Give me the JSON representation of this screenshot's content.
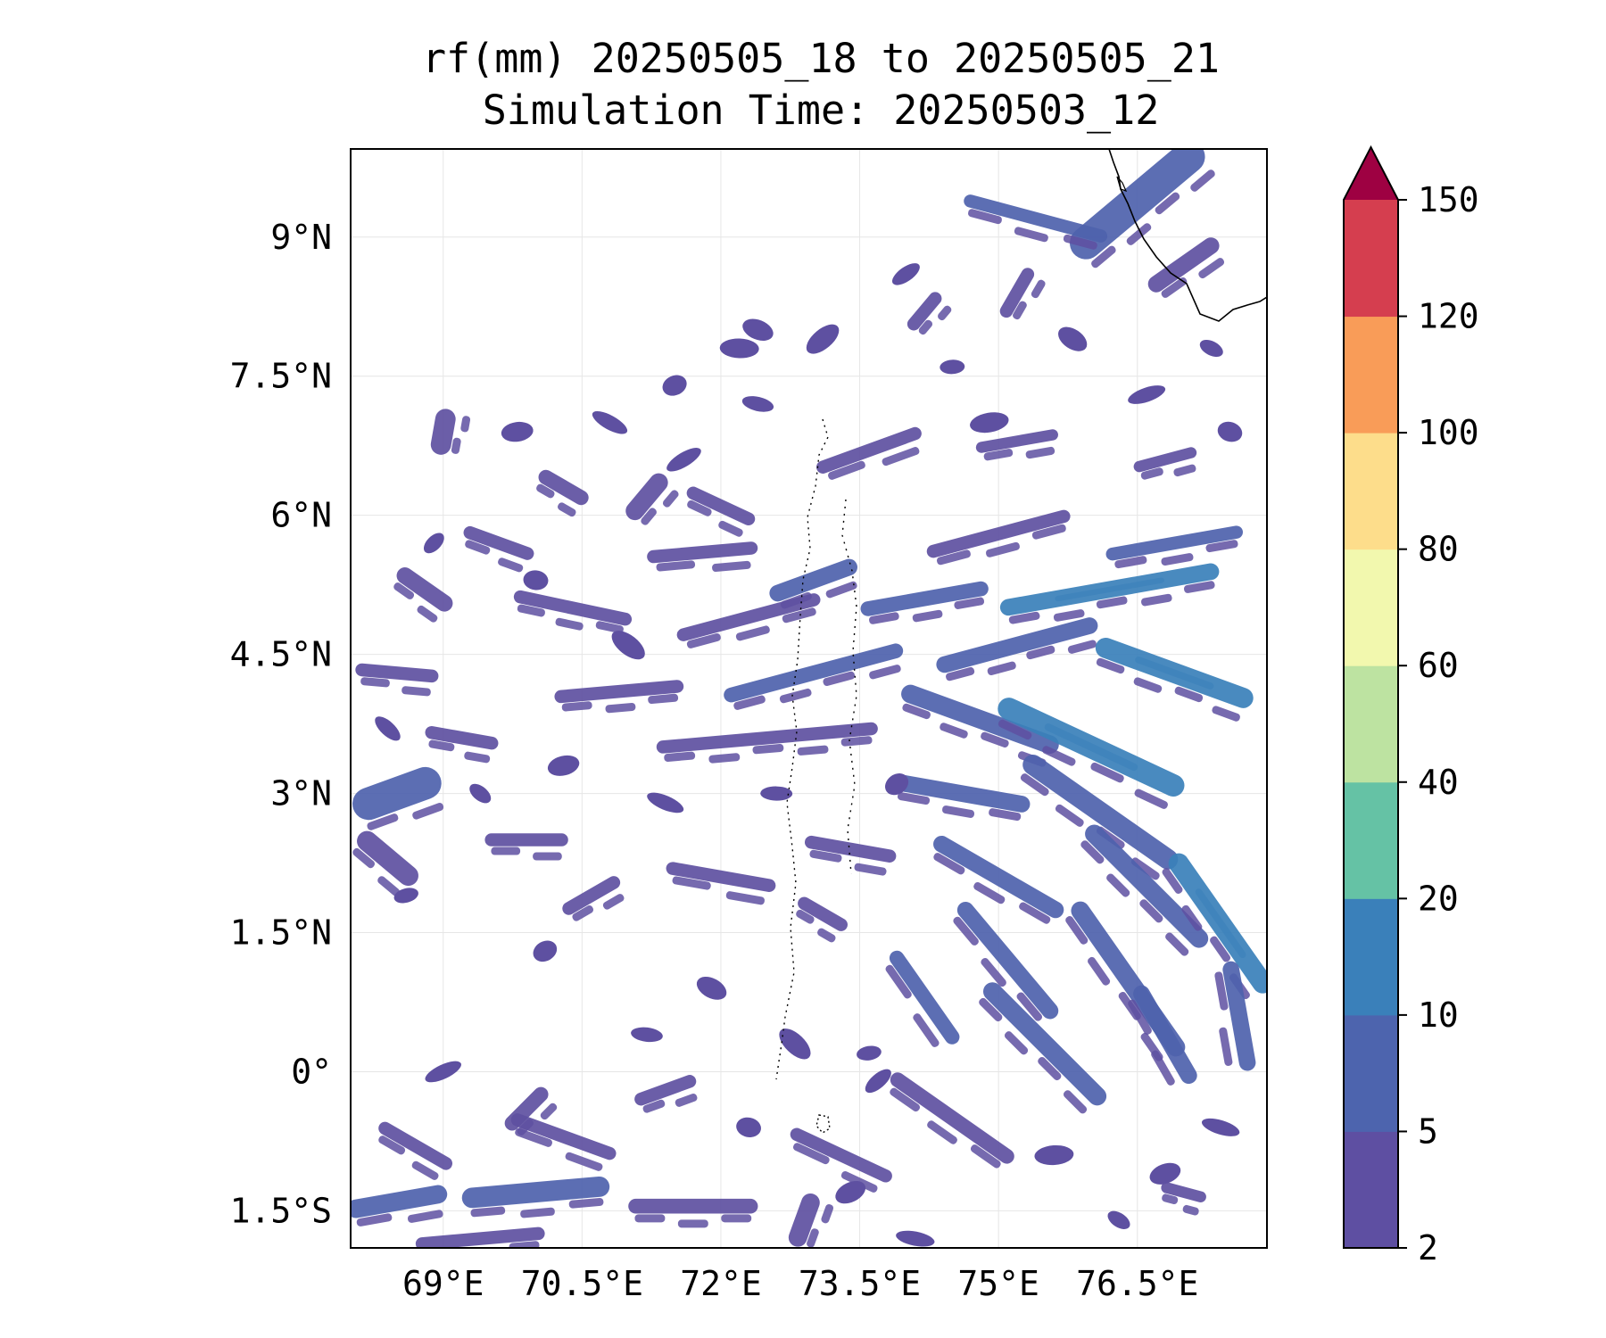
{
  "title": {
    "line1": "rf(mm) 20250505_18 to 20250505_21",
    "line2": "Simulation Time: 20250503_12"
  },
  "map": {
    "extent_lon": [
      68.0,
      77.9
    ],
    "extent_lat": [
      -1.9,
      9.95
    ],
    "lon_ticks": [
      {
        "value": 69.0,
        "label": "69°E"
      },
      {
        "value": 70.5,
        "label": "70.5°E"
      },
      {
        "value": 72.0,
        "label": "72°E"
      },
      {
        "value": 73.5,
        "label": "73.5°E"
      },
      {
        "value": 75.0,
        "label": "75°E"
      },
      {
        "value": 76.5,
        "label": "76.5°E"
      }
    ],
    "lat_ticks": [
      {
        "value": 9.0,
        "label": "9°N"
      },
      {
        "value": 7.5,
        "label": "7.5°N"
      },
      {
        "value": 6.0,
        "label": "6°N"
      },
      {
        "value": 4.5,
        "label": "4.5°N"
      },
      {
        "value": 3.0,
        "label": "3°N"
      },
      {
        "value": 1.5,
        "label": "1.5°N"
      },
      {
        "value": 0.0,
        "label": "0°"
      },
      {
        "value": -1.5,
        "label": "1.5°S"
      }
    ],
    "gridlines": true,
    "coastline_color": "#000000",
    "rain_colors": {
      "light": "#5e50a1",
      "moderate": "#4e62ad",
      "heavy": "#3a80ba"
    },
    "rain_bands": [
      {
        "lon": 76.5,
        "lat": 9.4,
        "length": 1.8,
        "width": 0.35,
        "angle": -40,
        "level": 5
      },
      {
        "lon": 75.4,
        "lat": 9.2,
        "length": 1.6,
        "width": 0.14,
        "angle": 15,
        "level": 5
      },
      {
        "lon": 77.0,
        "lat": 8.7,
        "length": 0.9,
        "width": 0.18,
        "angle": -35,
        "level": 2
      },
      {
        "lon": 75.2,
        "lat": 8.4,
        "length": 0.6,
        "width": 0.14,
        "angle": -60,
        "level": 2
      },
      {
        "lon": 74.2,
        "lat": 8.2,
        "length": 0.5,
        "width": 0.14,
        "angle": -50,
        "level": 2
      },
      {
        "lon": 69.0,
        "lat": 6.9,
        "length": 0.5,
        "width": 0.22,
        "angle": -80,
        "level": 2
      },
      {
        "lon": 70.3,
        "lat": 6.3,
        "length": 0.6,
        "width": 0.16,
        "angle": 30,
        "level": 2
      },
      {
        "lon": 71.2,
        "lat": 6.2,
        "length": 0.6,
        "width": 0.2,
        "angle": -50,
        "level": 2
      },
      {
        "lon": 72.0,
        "lat": 6.1,
        "length": 0.8,
        "width": 0.14,
        "angle": 25,
        "level": 2
      },
      {
        "lon": 73.6,
        "lat": 6.7,
        "length": 1.2,
        "width": 0.14,
        "angle": -20,
        "level": 2
      },
      {
        "lon": 75.2,
        "lat": 6.8,
        "length": 0.9,
        "width": 0.12,
        "angle": -10,
        "level": 2
      },
      {
        "lon": 76.8,
        "lat": 6.6,
        "length": 0.7,
        "width": 0.12,
        "angle": -15,
        "level": 2
      },
      {
        "lon": 69.6,
        "lat": 5.7,
        "length": 0.8,
        "width": 0.14,
        "angle": 20,
        "level": 2
      },
      {
        "lon": 71.8,
        "lat": 5.6,
        "length": 1.2,
        "width": 0.14,
        "angle": -5,
        "level": 2
      },
      {
        "lon": 73.0,
        "lat": 5.3,
        "length": 1.0,
        "width": 0.18,
        "angle": -20,
        "level": 5
      },
      {
        "lon": 75.0,
        "lat": 5.8,
        "length": 1.6,
        "width": 0.14,
        "angle": -15,
        "level": 2
      },
      {
        "lon": 76.9,
        "lat": 5.7,
        "length": 1.5,
        "width": 0.14,
        "angle": -10,
        "level": 5
      },
      {
        "lon": 68.8,
        "lat": 5.2,
        "length": 0.7,
        "width": 0.18,
        "angle": 35,
        "level": 2
      },
      {
        "lon": 70.4,
        "lat": 5.0,
        "length": 1.3,
        "width": 0.14,
        "angle": 12,
        "level": 2
      },
      {
        "lon": 72.3,
        "lat": 4.9,
        "length": 1.6,
        "width": 0.14,
        "angle": -15,
        "level": 2
      },
      {
        "lon": 74.2,
        "lat": 5.1,
        "length": 1.4,
        "width": 0.16,
        "angle": -10,
        "level": 5
      },
      {
        "lon": 76.2,
        "lat": 5.2,
        "length": 2.4,
        "width": 0.18,
        "angle": -10,
        "level": 10
      },
      {
        "lon": 68.5,
        "lat": 4.3,
        "length": 0.9,
        "width": 0.14,
        "angle": 5,
        "level": 2
      },
      {
        "lon": 70.9,
        "lat": 4.1,
        "length": 1.4,
        "width": 0.14,
        "angle": -5,
        "level": 2
      },
      {
        "lon": 73.0,
        "lat": 4.3,
        "length": 2.0,
        "width": 0.16,
        "angle": -15,
        "level": 5
      },
      {
        "lon": 75.2,
        "lat": 4.6,
        "length": 1.8,
        "width": 0.18,
        "angle": -15,
        "level": 5
      },
      {
        "lon": 76.9,
        "lat": 4.3,
        "length": 1.8,
        "width": 0.22,
        "angle": 20,
        "level": 10
      },
      {
        "lon": 69.2,
        "lat": 3.6,
        "length": 0.8,
        "width": 0.14,
        "angle": 10,
        "level": 2
      },
      {
        "lon": 72.5,
        "lat": 3.6,
        "length": 2.4,
        "width": 0.14,
        "angle": -5,
        "level": 2
      },
      {
        "lon": 74.8,
        "lat": 3.8,
        "length": 1.8,
        "width": 0.2,
        "angle": 20,
        "level": 5
      },
      {
        "lon": 76.0,
        "lat": 3.5,
        "length": 2.2,
        "width": 0.24,
        "angle": 25,
        "level": 10
      },
      {
        "lon": 68.5,
        "lat": 3.0,
        "length": 1.0,
        "width": 0.35,
        "angle": -20,
        "level": 5
      },
      {
        "lon": 74.6,
        "lat": 3.0,
        "length": 1.5,
        "width": 0.18,
        "angle": 10,
        "level": 5
      },
      {
        "lon": 76.1,
        "lat": 2.8,
        "length": 2.0,
        "width": 0.22,
        "angle": 35,
        "level": 5
      },
      {
        "lon": 68.4,
        "lat": 2.3,
        "length": 0.8,
        "width": 0.22,
        "angle": 40,
        "level": 2
      },
      {
        "lon": 69.9,
        "lat": 2.5,
        "length": 0.9,
        "width": 0.14,
        "angle": 0,
        "level": 2
      },
      {
        "lon": 72.0,
        "lat": 2.1,
        "length": 1.2,
        "width": 0.14,
        "angle": 10,
        "level": 2
      },
      {
        "lon": 73.4,
        "lat": 2.4,
        "length": 1.0,
        "width": 0.14,
        "angle": 10,
        "level": 2
      },
      {
        "lon": 75.0,
        "lat": 2.1,
        "length": 1.6,
        "width": 0.18,
        "angle": 30,
        "level": 5
      },
      {
        "lon": 76.6,
        "lat": 2.0,
        "length": 1.8,
        "width": 0.2,
        "angle": 45,
        "level": 5
      },
      {
        "lon": 77.4,
        "lat": 1.6,
        "length": 1.8,
        "width": 0.22,
        "angle": 55,
        "level": 10
      },
      {
        "lon": 70.6,
        "lat": 1.9,
        "length": 0.7,
        "width": 0.14,
        "angle": -30,
        "level": 2
      },
      {
        "lon": 73.1,
        "lat": 1.7,
        "length": 0.6,
        "width": 0.14,
        "angle": 30,
        "level": 2
      },
      {
        "lon": 75.1,
        "lat": 1.2,
        "length": 1.6,
        "width": 0.18,
        "angle": 50,
        "level": 5
      },
      {
        "lon": 76.4,
        "lat": 1.0,
        "length": 2.0,
        "width": 0.2,
        "angle": 55,
        "level": 5
      },
      {
        "lon": 77.6,
        "lat": 0.6,
        "length": 1.2,
        "width": 0.18,
        "angle": 80,
        "level": 5
      },
      {
        "lon": 74.2,
        "lat": 0.8,
        "length": 1.2,
        "width": 0.16,
        "angle": 55,
        "level": 5
      },
      {
        "lon": 75.5,
        "lat": 0.3,
        "length": 1.8,
        "width": 0.2,
        "angle": 45,
        "level": 5
      },
      {
        "lon": 76.8,
        "lat": 0.4,
        "length": 1.2,
        "width": 0.18,
        "angle": 60,
        "level": 5
      },
      {
        "lon": 74.5,
        "lat": -0.5,
        "length": 1.6,
        "width": 0.16,
        "angle": 35,
        "level": 2
      },
      {
        "lon": 73.3,
        "lat": -0.9,
        "length": 1.2,
        "width": 0.14,
        "angle": 25,
        "level": 2
      },
      {
        "lon": 70.3,
        "lat": -0.7,
        "length": 1.2,
        "width": 0.14,
        "angle": 20,
        "level": 2
      },
      {
        "lon": 71.4,
        "lat": -0.2,
        "length": 0.7,
        "width": 0.14,
        "angle": -20,
        "level": 2
      },
      {
        "lon": 68.7,
        "lat": -0.8,
        "length": 0.9,
        "width": 0.14,
        "angle": 30,
        "level": 2
      },
      {
        "lon": 69.9,
        "lat": -0.4,
        "length": 0.6,
        "width": 0.16,
        "angle": -45,
        "level": 2
      },
      {
        "lon": 68.5,
        "lat": -1.4,
        "length": 1.1,
        "width": 0.2,
        "angle": -10,
        "level": 5
      },
      {
        "lon": 70.0,
        "lat": -1.3,
        "length": 1.6,
        "width": 0.22,
        "angle": -5,
        "level": 5
      },
      {
        "lon": 71.7,
        "lat": -1.45,
        "length": 1.4,
        "width": 0.16,
        "angle": 0,
        "level": 2
      },
      {
        "lon": 72.9,
        "lat": -1.6,
        "length": 0.6,
        "width": 0.2,
        "angle": -70,
        "level": 2
      },
      {
        "lon": 69.4,
        "lat": -1.8,
        "length": 1.4,
        "width": 0.14,
        "angle": -5,
        "level": 2
      },
      {
        "lon": 77.0,
        "lat": -1.3,
        "length": 0.5,
        "width": 0.12,
        "angle": 15,
        "level": 2
      }
    ],
    "rain_cells": [
      {
        "lon": 68.9,
        "lat": 5.7
      },
      {
        "lon": 69.8,
        "lat": 6.9
      },
      {
        "lon": 70.8,
        "lat": 7.0
      },
      {
        "lon": 71.5,
        "lat": 7.4
      },
      {
        "lon": 72.4,
        "lat": 7.2
      },
      {
        "lon": 73.1,
        "lat": 7.9
      },
      {
        "lon": 74.5,
        "lat": 7.6
      },
      {
        "lon": 75.8,
        "lat": 7.9
      },
      {
        "lon": 76.6,
        "lat": 7.3
      },
      {
        "lon": 77.5,
        "lat": 6.9
      },
      {
        "lon": 74.0,
        "lat": 8.6
      },
      {
        "lon": 72.2,
        "lat": 7.8
      },
      {
        "lon": 69.4,
        "lat": 3.0
      },
      {
        "lon": 70.3,
        "lat": 3.3
      },
      {
        "lon": 71.4,
        "lat": 2.9
      },
      {
        "lon": 70.1,
        "lat": 1.3
      },
      {
        "lon": 71.2,
        "lat": 0.4
      },
      {
        "lon": 72.8,
        "lat": 0.3
      },
      {
        "lon": 73.6,
        "lat": 0.2
      },
      {
        "lon": 71.9,
        "lat": 0.9
      },
      {
        "lon": 69.0,
        "lat": 0.0
      },
      {
        "lon": 72.3,
        "lat": -0.6
      },
      {
        "lon": 73.7,
        "lat": -0.1
      },
      {
        "lon": 75.6,
        "lat": -0.9
      },
      {
        "lon": 76.3,
        "lat": -1.6
      },
      {
        "lon": 76.8,
        "lat": -1.1
      },
      {
        "lon": 77.4,
        "lat": -0.6
      },
      {
        "lon": 73.9,
        "lat": 3.1
      },
      {
        "lon": 72.6,
        "lat": 3.0
      },
      {
        "lon": 71.0,
        "lat": 4.6
      },
      {
        "lon": 68.6,
        "lat": 1.9
      },
      {
        "lon": 72.4,
        "lat": 8.0
      },
      {
        "lon": 71.6,
        "lat": 6.6
      },
      {
        "lon": 70.0,
        "lat": 5.3
      },
      {
        "lon": 68.4,
        "lat": 3.7
      },
      {
        "lon": 74.9,
        "lat": 7.0
      },
      {
        "lon": 77.3,
        "lat": 7.8
      },
      {
        "lon": 73.4,
        "lat": -1.3
      },
      {
        "lon": 74.1,
        "lat": -1.8
      }
    ]
  },
  "colorbar": {
    "levels": [
      "2",
      "5",
      "10",
      "20",
      "40",
      "60",
      "80",
      "100",
      "120",
      "150"
    ],
    "colors": [
      "#5e4fa2",
      "#4d64ae",
      "#3a80ba",
      "#65c2a5",
      "#bde3a1",
      "#f2f8ae",
      "#fddd8b",
      "#f99c58",
      "#d53e4f"
    ],
    "extend_color": "#9e0142",
    "extend": "max"
  }
}
